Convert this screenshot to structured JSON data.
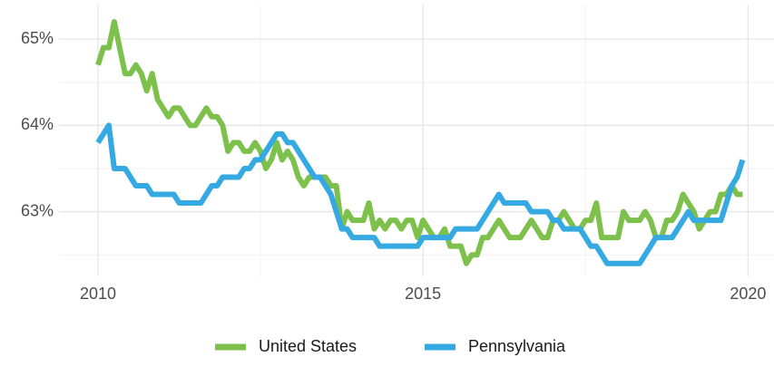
{
  "chart_data": {
    "type": "line",
    "x": [
      2010,
      2010.083,
      2010.167,
      2010.25,
      2010.333,
      2010.417,
      2010.5,
      2010.583,
      2010.667,
      2010.75,
      2010.833,
      2010.917,
      2011,
      2011.083,
      2011.167,
      2011.25,
      2011.333,
      2011.417,
      2011.5,
      2011.583,
      2011.667,
      2011.75,
      2011.833,
      2011.917,
      2012,
      2012.083,
      2012.167,
      2012.25,
      2012.333,
      2012.417,
      2012.5,
      2012.583,
      2012.667,
      2012.75,
      2012.833,
      2012.917,
      2013,
      2013.083,
      2013.167,
      2013.25,
      2013.333,
      2013.417,
      2013.5,
      2013.583,
      2013.667,
      2013.75,
      2013.833,
      2013.917,
      2014,
      2014.083,
      2014.167,
      2014.25,
      2014.333,
      2014.417,
      2014.5,
      2014.583,
      2014.667,
      2014.75,
      2014.833,
      2014.917,
      2015,
      2015.083,
      2015.167,
      2015.25,
      2015.333,
      2015.417,
      2015.5,
      2015.583,
      2015.667,
      2015.75,
      2015.833,
      2015.917,
      2016,
      2016.083,
      2016.167,
      2016.25,
      2016.333,
      2016.417,
      2016.5,
      2016.583,
      2016.667,
      2016.75,
      2016.833,
      2016.917,
      2017,
      2017.083,
      2017.167,
      2017.25,
      2017.333,
      2017.417,
      2017.5,
      2017.583,
      2017.667,
      2017.75,
      2017.833,
      2017.917,
      2018,
      2018.083,
      2018.167,
      2018.25,
      2018.333,
      2018.417,
      2018.5,
      2018.583,
      2018.667,
      2018.75,
      2018.833,
      2018.917,
      2019,
      2019.083,
      2019.167,
      2019.25,
      2019.333,
      2019.417,
      2019.5,
      2019.583,
      2019.667,
      2019.75,
      2019.833,
      2019.917
    ],
    "series": [
      {
        "name": "United States",
        "color": "#7dc14c",
        "values": [
          64.7,
          64.9,
          64.9,
          65.2,
          64.9,
          64.6,
          64.6,
          64.7,
          64.6,
          64.4,
          64.6,
          64.3,
          64.2,
          64.1,
          64.2,
          64.2,
          64.1,
          64.0,
          64.0,
          64.1,
          64.2,
          64.1,
          64.1,
          64.0,
          63.7,
          63.8,
          63.8,
          63.7,
          63.7,
          63.8,
          63.7,
          63.5,
          63.6,
          63.8,
          63.6,
          63.7,
          63.6,
          63.4,
          63.3,
          63.4,
          63.4,
          63.4,
          63.4,
          63.3,
          63.3,
          62.8,
          63.0,
          62.9,
          62.9,
          62.9,
          63.1,
          62.8,
          62.9,
          62.8,
          62.9,
          62.9,
          62.8,
          62.9,
          62.9,
          62.7,
          62.9,
          62.8,
          62.7,
          62.7,
          62.8,
          62.6,
          62.6,
          62.6,
          62.4,
          62.5,
          62.5,
          62.7,
          62.7,
          62.8,
          62.9,
          62.8,
          62.7,
          62.7,
          62.7,
          62.8,
          62.9,
          62.8,
          62.7,
          62.7,
          62.9,
          62.9,
          63.0,
          62.9,
          62.8,
          62.8,
          62.9,
          62.9,
          63.1,
          62.7,
          62.7,
          62.7,
          62.7,
          63.0,
          62.9,
          62.9,
          62.9,
          63.0,
          62.9,
          62.7,
          62.7,
          62.9,
          62.9,
          63.0,
          63.2,
          63.1,
          63.0,
          62.8,
          62.9,
          63.0,
          63.0,
          63.2,
          63.2,
          63.3,
          63.2,
          63.2
        ]
      },
      {
        "name": "Pennsylvania",
        "color": "#35a9e1",
        "values": [
          63.8,
          63.9,
          64.0,
          63.5,
          63.5,
          63.5,
          63.4,
          63.3,
          63.3,
          63.3,
          63.2,
          63.2,
          63.2,
          63.2,
          63.2,
          63.1,
          63.1,
          63.1,
          63.1,
          63.1,
          63.2,
          63.3,
          63.3,
          63.4,
          63.4,
          63.4,
          63.4,
          63.5,
          63.5,
          63.6,
          63.6,
          63.7,
          63.8,
          63.9,
          63.9,
          63.8,
          63.8,
          63.7,
          63.6,
          63.5,
          63.4,
          63.4,
          63.3,
          63.2,
          63.0,
          62.8,
          62.8,
          62.7,
          62.7,
          62.7,
          62.7,
          62.7,
          62.6,
          62.6,
          62.6,
          62.6,
          62.6,
          62.6,
          62.6,
          62.6,
          62.7,
          62.7,
          62.7,
          62.7,
          62.7,
          62.7,
          62.8,
          62.8,
          62.8,
          62.8,
          62.8,
          62.9,
          63.0,
          63.1,
          63.2,
          63.1,
          63.1,
          63.1,
          63.1,
          63.1,
          63.0,
          63.0,
          63.0,
          63.0,
          62.9,
          62.9,
          62.8,
          62.8,
          62.8,
          62.8,
          62.7,
          62.6,
          62.6,
          62.5,
          62.4,
          62.4,
          62.4,
          62.4,
          62.4,
          62.4,
          62.4,
          62.5,
          62.6,
          62.7,
          62.7,
          62.7,
          62.7,
          62.8,
          62.9,
          63.0,
          62.9,
          62.9,
          62.9,
          62.9,
          62.9,
          62.9,
          63.1,
          63.3,
          63.4,
          63.6
        ]
      }
    ],
    "xlim": [
      2009.4,
      2020.4
    ],
    "ylim": [
      62.25,
      65.4
    ],
    "xticks": [
      2010,
      2015,
      2020
    ],
    "yticks": [
      {
        "value": 63,
        "label": "63%"
      },
      {
        "value": 64,
        "label": "64%"
      },
      {
        "value": 65,
        "label": "65%"
      }
    ],
    "xminorticks": [
      2012.5,
      2017.5
    ],
    "yminorticks": [
      62.5,
      63.5,
      64.5
    ],
    "grid": true,
    "legend": "bottom"
  }
}
